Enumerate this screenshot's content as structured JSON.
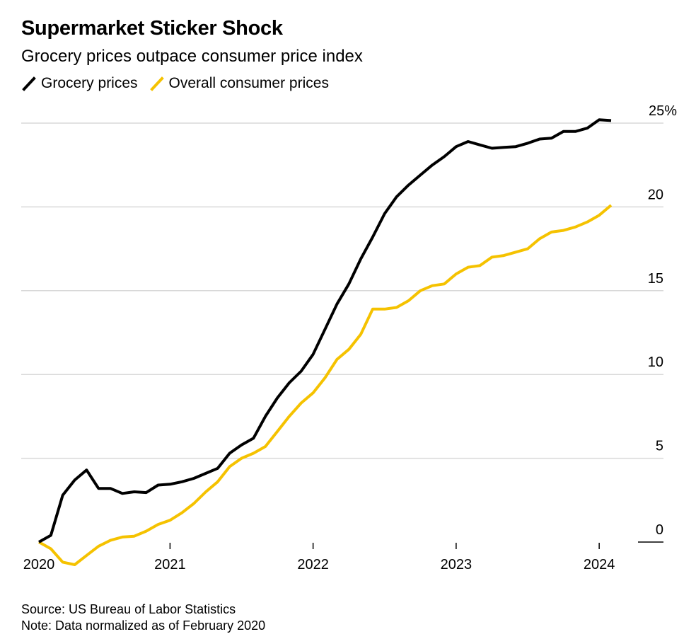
{
  "header": {
    "title": "Supermarket Sticker Shock",
    "subtitle": "Grocery prices outpace consumer price index"
  },
  "footer": {
    "source": "Source: US Bureau of Labor Statistics",
    "note": "Note: Data normalized as of February 2020"
  },
  "colors": {
    "grocery": "#000000",
    "overall": "#f5c200",
    "grid": "#d9d9d9",
    "axis": "#000000"
  },
  "chart_data": {
    "type": "line",
    "title": "Supermarket Sticker Shock",
    "subtitle": "Grocery prices outpace consumer price index",
    "xlabel": "",
    "ylabel": "",
    "x_start": "2020-02",
    "x_step": "month",
    "xlim": [
      "2020-02",
      "2024-04"
    ],
    "ylim": [
      0,
      25
    ],
    "grid": true,
    "legend_position": "top-left",
    "y_ticks": [
      0,
      5,
      10,
      15,
      20,
      25
    ],
    "y_tick_labels": [
      "0",
      "5",
      "10",
      "15",
      "20",
      "25%"
    ],
    "x_ticks": [
      "2020-02",
      "2021-01",
      "2022-01",
      "2023-01",
      "2024-01"
    ],
    "x_tick_labels": [
      "2020",
      "2021",
      "2022",
      "2023",
      "2024"
    ],
    "series": [
      {
        "name": "Grocery prices",
        "color": "#000000",
        "values": [
          0.0,
          0.4,
          2.8,
          3.7,
          4.3,
          3.2,
          3.2,
          2.9,
          3.0,
          2.95,
          3.4,
          3.45,
          3.6,
          3.8,
          4.1,
          4.4,
          5.3,
          5.8,
          6.2,
          7.5,
          8.6,
          9.5,
          10.2,
          11.2,
          12.7,
          14.2,
          15.4,
          16.9,
          18.2,
          19.6,
          20.6,
          21.3,
          21.9,
          22.5,
          23.0,
          23.6,
          23.9,
          23.7,
          23.5,
          23.55,
          23.6,
          23.8,
          24.05,
          24.1,
          24.5,
          24.5,
          24.7,
          25.2,
          25.15
        ]
      },
      {
        "name": "Overall consumer prices",
        "color": "#f5c200",
        "values": [
          0.0,
          -0.4,
          -1.2,
          -1.35,
          -0.8,
          -0.25,
          0.1,
          0.3,
          0.35,
          0.65,
          1.05,
          1.3,
          1.75,
          2.3,
          3.0,
          3.6,
          4.5,
          5.0,
          5.3,
          5.7,
          6.6,
          7.5,
          8.3,
          8.9,
          9.8,
          10.9,
          11.5,
          12.4,
          13.9,
          13.9,
          14.0,
          14.4,
          15.0,
          15.3,
          15.4,
          16.0,
          16.4,
          16.5,
          17.0,
          17.1,
          17.3,
          17.5,
          18.1,
          18.5,
          18.6,
          18.8,
          19.1,
          19.5,
          20.1
        ]
      }
    ]
  }
}
